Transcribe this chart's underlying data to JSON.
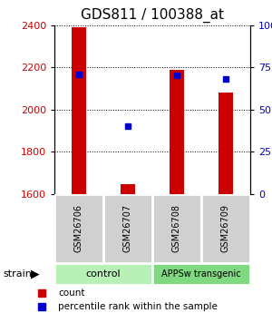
{
  "title": "GDS811 / 100388_at",
  "samples": [
    "GSM26706",
    "GSM26707",
    "GSM26708",
    "GSM26709"
  ],
  "group_labels": [
    "control",
    "APPSw transgenic"
  ],
  "group_colors": [
    "#b8f0b8",
    "#80d880"
  ],
  "counts": [
    2390,
    1645,
    2190,
    2080
  ],
  "percentiles": [
    71,
    40,
    70,
    68
  ],
  "ymin": 1600,
  "ymax": 2400,
  "yticks": [
    1600,
    1800,
    2000,
    2200,
    2400
  ],
  "right_yticks": [
    0,
    25,
    50,
    75,
    100
  ],
  "bar_color": "#cc0000",
  "dot_color": "#0000cc",
  "bar_width": 0.28,
  "left_axis_color": "#cc0000",
  "right_axis_color": "#0000cc",
  "title_fontsize": 11,
  "tick_fontsize": 8,
  "sample_box_color": "#d0d0d0",
  "legend_marker_size": 6,
  "legend_fontsize": 7.5
}
